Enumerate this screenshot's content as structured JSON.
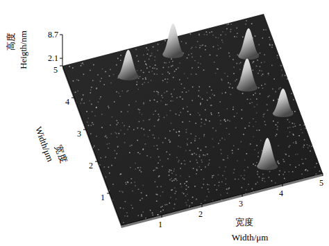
{
  "chart_data": {
    "type": "surface3d",
    "xlabel": [
      "宽度",
      "Width/μm"
    ],
    "ylabel": [
      "宽度",
      "Width/μm"
    ],
    "zlabel": [
      "高度",
      "Heigth/nm"
    ],
    "xlim": [
      0,
      5
    ],
    "ylim": [
      0,
      5
    ],
    "zlim": [
      0,
      8.7
    ],
    "xticks": [
      1,
      2,
      3,
      4,
      5
    ],
    "yticks": [
      1,
      2,
      3,
      4,
      5
    ],
    "zticks": [
      2.1,
      8.7
    ],
    "color": "#1c1c1c",
    "peaks": {
      "x": [
        1.4,
        2.6,
        4.3,
        4.0,
        4.6,
        3.8
      ],
      "y": [
        4.2,
        4.5,
        3.9,
        3.0,
        2.0,
        0.6
      ],
      "height": [
        7.5,
        8.7,
        7.8,
        8.2,
        7.0,
        8.0
      ]
    },
    "grid": false
  }
}
